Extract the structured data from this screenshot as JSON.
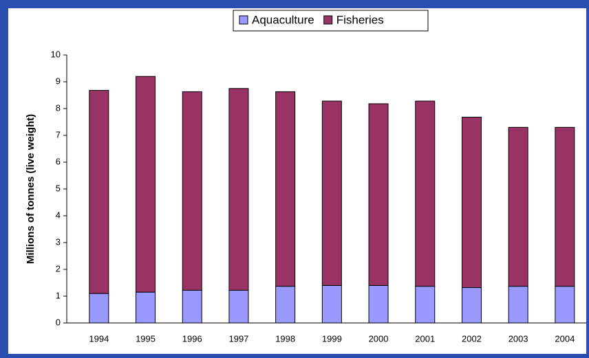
{
  "chart_data": {
    "type": "stacked_bar",
    "y_label": "Millions of tonnes (live weight)",
    "categories": [
      "1994",
      "1995",
      "1996",
      "1997",
      "1998",
      "1999",
      "2000",
      "2001",
      "2002",
      "2003",
      "2004"
    ],
    "series": [
      {
        "name": "Aquaculture",
        "color": "#9999ff",
        "values": [
          1.1,
          1.15,
          1.22,
          1.22,
          1.37,
          1.4,
          1.4,
          1.37,
          1.32,
          1.37,
          1.37
        ]
      },
      {
        "name": "Fisheries",
        "color": "#993366",
        "values": [
          7.58,
          8.05,
          7.41,
          7.53,
          7.26,
          6.88,
          6.78,
          6.91,
          6.36,
          5.93,
          5.93
        ]
      }
    ],
    "ylim": [
      0,
      10
    ],
    "yticks": [
      0,
      1,
      2,
      3,
      4,
      5,
      6,
      7,
      8,
      9,
      10
    ],
    "legend": "top"
  }
}
